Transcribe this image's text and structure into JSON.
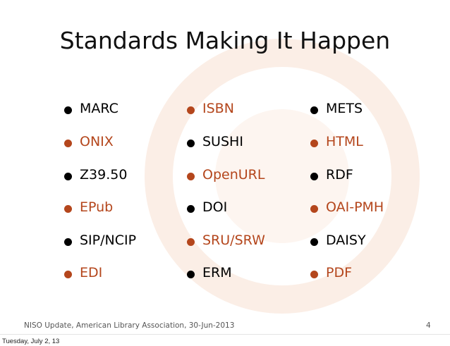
{
  "slide": {
    "title": "Standards Making It Happen",
    "columns": [
      [
        {
          "text": "MARC",
          "color": "#000000"
        },
        {
          "text": "ONIX",
          "color": "#b4461c"
        },
        {
          "text": "Z39.50",
          "color": "#000000"
        },
        {
          "text": "EPub",
          "color": "#b4461c"
        },
        {
          "text": "SIP/NCIP",
          "color": "#000000"
        },
        {
          "text": "EDI",
          "color": "#b4461c"
        }
      ],
      [
        {
          "text": "ISBN",
          "color": "#b4461c"
        },
        {
          "text": "SUSHI",
          "color": "#000000"
        },
        {
          "text": "OpenURL",
          "color": "#b4461c"
        },
        {
          "text": "DOI",
          "color": "#000000"
        },
        {
          "text": "SRU/SRW",
          "color": "#b4461c"
        },
        {
          "text": "ERM",
          "color": "#000000"
        }
      ],
      [
        {
          "text": "METS",
          "color": "#000000"
        },
        {
          "text": "HTML",
          "color": "#b4461c"
        },
        {
          "text": "RDF",
          "color": "#000000"
        },
        {
          "text": "OAI-PMH",
          "color": "#b4461c"
        },
        {
          "text": "DAISY",
          "color": "#000000"
        },
        {
          "text": "PDF",
          "color": "#b4461c"
        }
      ]
    ],
    "footer": "NISO Update, American Library Association, 30-Jun-2013",
    "page_number": "4"
  },
  "date_stamp": "Tuesday, July 2, 13"
}
